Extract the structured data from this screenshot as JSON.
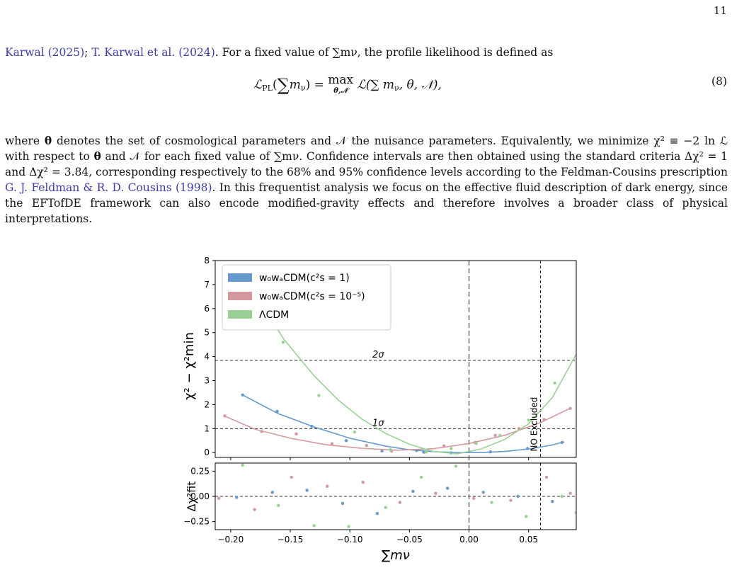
{
  "page": {
    "number": "11",
    "para1": [
      {
        "t": "Karwal (2025)",
        "link": true
      },
      {
        "t": "; ",
        "link": false
      },
      {
        "t": "T. Karwal et al. (2024)",
        "link": true
      },
      {
        "t": ". For a fixed value of ∑m",
        "link": false
      },
      {
        "t": "ν",
        "link": false
      },
      {
        "t": ", the profile likelihood is defined as",
        "link": false
      }
    ],
    "equation": {
      "lhs": "ℒ",
      "lhs_sub": "PL",
      "sum_arg": "m",
      "sum_sub": "ν",
      "max_op": "max",
      "max_under": "θ,𝒩",
      "rhs": "ℒ(∑ m",
      "rhs_tail": ", θ, 𝒩),",
      "number": "(8)"
    },
    "para2": [
      {
        "t": "where ",
        "link": false
      },
      {
        "t": "θ",
        "link": false,
        "bold": true
      },
      {
        "t": " denotes the set of cosmological parameters and 𝒩 the nuisance parameters.  Equivalently, we minimize χ² ≡ −2 ln ℒ with respect to ",
        "link": false
      },
      {
        "t": "θ",
        "link": false,
        "bold": true
      },
      {
        "t": " and 𝒩 for each fixed value of ∑m",
        "link": false
      },
      {
        "t": "ν",
        "link": false
      },
      {
        "t": ". Confidence intervals are then obtained using the standard criteria Δχ² = 1 and Δχ² = 3.84, corresponding respectively to the 68% and 95% confidence levels according to the Feldman-Cousins prescription ",
        "link": false
      },
      {
        "t": "G. J. Feldman & R. D. Cousins (1998)",
        "link": true
      },
      {
        "t": ". In this frequentist analysis we focus on the effective fluid description of dark energy, since the EFTofDE framework can also encode modified-gravity effects and therefore involves a broader class of physical interpretations.",
        "link": false
      }
    ]
  },
  "chart_data": [
    {
      "type": "line",
      "panel": "main",
      "ylabel": "χ² − χ²min",
      "xlim": [
        -0.213,
        0.09
      ],
      "ylim": [
        -0.2,
        8.0
      ],
      "yticks": [
        0,
        1,
        2,
        3,
        4,
        5,
        6,
        7,
        8
      ],
      "hlines": [
        {
          "y": 3.84,
          "label": "2σ"
        },
        {
          "y": 1.0,
          "label": "1σ"
        }
      ],
      "vlines": [
        {
          "x": 0.0,
          "style": "dashed-gray"
        },
        {
          "x": 0.06,
          "label": "NO Excluded",
          "style": "dashed-black"
        }
      ],
      "legend": {
        "position": "top-left",
        "entries": [
          {
            "label": "w₀wₐCDM(c²s = 1)",
            "color": "#6699cc"
          },
          {
            "label": "w₀wₐCDM(c²s = 10⁻⁵)",
            "color": "#d4999d"
          },
          {
            "label": "ΛCDM",
            "color": "#99d195"
          }
        ]
      },
      "series": [
        {
          "name": "w₀wₐCDM(c²s = 1)",
          "color": "#6699cc",
          "curve_x": [
            -0.19,
            -0.16,
            -0.13,
            -0.1,
            -0.07,
            -0.05,
            -0.03,
            -0.01,
            0.01,
            0.03,
            0.05,
            0.07,
            0.08
          ],
          "curve_y": [
            2.4,
            1.62,
            1.07,
            0.6,
            0.27,
            0.12,
            0.04,
            0.0,
            0.0,
            0.05,
            0.15,
            0.32,
            0.45
          ],
          "points_x": [
            -0.19,
            -0.161,
            -0.132,
            -0.103,
            -0.073,
            -0.044,
            -0.038,
            -0.015,
            0.018,
            0.049,
            0.078
          ],
          "points_y": [
            2.4,
            1.72,
            1.1,
            0.5,
            0.07,
            0.09,
            0.02,
            -0.01,
            0.03,
            0.17,
            0.42
          ]
        },
        {
          "name": "w₀wₐCDM(c²s = 10⁻⁵)",
          "color": "#d4999d",
          "curve_x": [
            -0.205,
            -0.18,
            -0.15,
            -0.12,
            -0.09,
            -0.06,
            -0.03,
            0.0,
            0.03,
            0.06,
            0.085
          ],
          "curve_y": [
            1.52,
            0.98,
            0.6,
            0.33,
            0.18,
            0.1,
            0.16,
            0.38,
            0.72,
            1.25,
            1.85
          ],
          "points_x": [
            -0.205,
            -0.174,
            -0.145,
            -0.115,
            -0.086,
            -0.065,
            -0.021,
            0.005,
            0.022,
            0.042,
            0.063,
            0.085
          ],
          "points_y": [
            1.53,
            0.88,
            0.78,
            0.37,
            0.3,
            0.06,
            0.28,
            0.42,
            0.72,
            1.0,
            1.38,
            1.84
          ]
        },
        {
          "name": "ΛCDM",
          "color": "#99d195",
          "curve_x": [
            -0.175,
            -0.155,
            -0.13,
            -0.11,
            -0.09,
            -0.07,
            -0.05,
            -0.03,
            -0.01,
            0.01,
            0.03,
            0.05,
            0.07,
            0.09
          ],
          "curve_y": [
            6.2,
            4.7,
            3.2,
            2.2,
            1.4,
            0.8,
            0.35,
            0.05,
            -0.05,
            0.15,
            0.55,
            1.2,
            2.3,
            4.1
          ],
          "points_x": [
            -0.187,
            -0.156,
            -0.126,
            -0.096,
            -0.066,
            -0.036,
            -0.015,
            0.006,
            0.026,
            0.05,
            0.072
          ],
          "points_y": [
            5.9,
            4.6,
            2.38,
            0.86,
            0.12,
            0.02,
            0.17,
            0.38,
            0.72,
            1.35,
            2.9
          ]
        }
      ]
    },
    {
      "type": "scatter",
      "panel": "residuals",
      "ylabel": "Δχ²fit",
      "xlabel": "∑mν",
      "xlim": [
        -0.213,
        0.09
      ],
      "ylim": [
        -0.33,
        0.33
      ],
      "yticks": [
        -0.25,
        0.0,
        0.25
      ],
      "ytick_labels": [
        "−0.25",
        "0.00",
        "0.25"
      ],
      "xticks": [
        -0.2,
        -0.15,
        -0.1,
        -0.05,
        0.0,
        0.05
      ],
      "xtick_labels": [
        "−0.20",
        "−0.15",
        "−0.10",
        "−0.05",
        "0.00",
        "0.05"
      ],
      "hlines": [
        {
          "y": 0.0
        }
      ],
      "vlines": [
        {
          "x": 0.0
        },
        {
          "x": 0.06
        }
      ],
      "series": [
        {
          "name": "w₀wₐCDM(c²s = 1)",
          "color": "#6699cc",
          "x": [
            -0.195,
            -0.165,
            -0.136,
            -0.106,
            -0.077,
            -0.047,
            -0.018,
            0.012,
            0.041,
            0.07
          ],
          "y": [
            -0.01,
            0.04,
            0.06,
            -0.07,
            -0.17,
            0.05,
            0.08,
            0.04,
            0.0,
            -0.05
          ]
        },
        {
          "name": "w₀wₐCDM(c²s = 10⁻⁵)",
          "color": "#d4999d",
          "x": [
            -0.21,
            -0.18,
            -0.149,
            -0.119,
            -0.089,
            -0.058,
            -0.028,
            0.004,
            0.035,
            0.065,
            0.085
          ],
          "y": [
            -0.02,
            -0.13,
            0.19,
            0.1,
            0.14,
            -0.06,
            0.03,
            -0.02,
            -0.04,
            0.19,
            0.03
          ]
        },
        {
          "name": "ΛCDM",
          "color": "#99d195",
          "x": [
            -0.19,
            -0.16,
            -0.13,
            -0.101,
            -0.07,
            -0.04,
            -0.011,
            0.019,
            0.048,
            0.078,
            0.09
          ],
          "y": [
            0.31,
            -0.09,
            -0.29,
            -0.3,
            -0.11,
            0.19,
            0.3,
            -0.06,
            -0.2,
            0.0,
            -0.16
          ]
        }
      ]
    }
  ]
}
